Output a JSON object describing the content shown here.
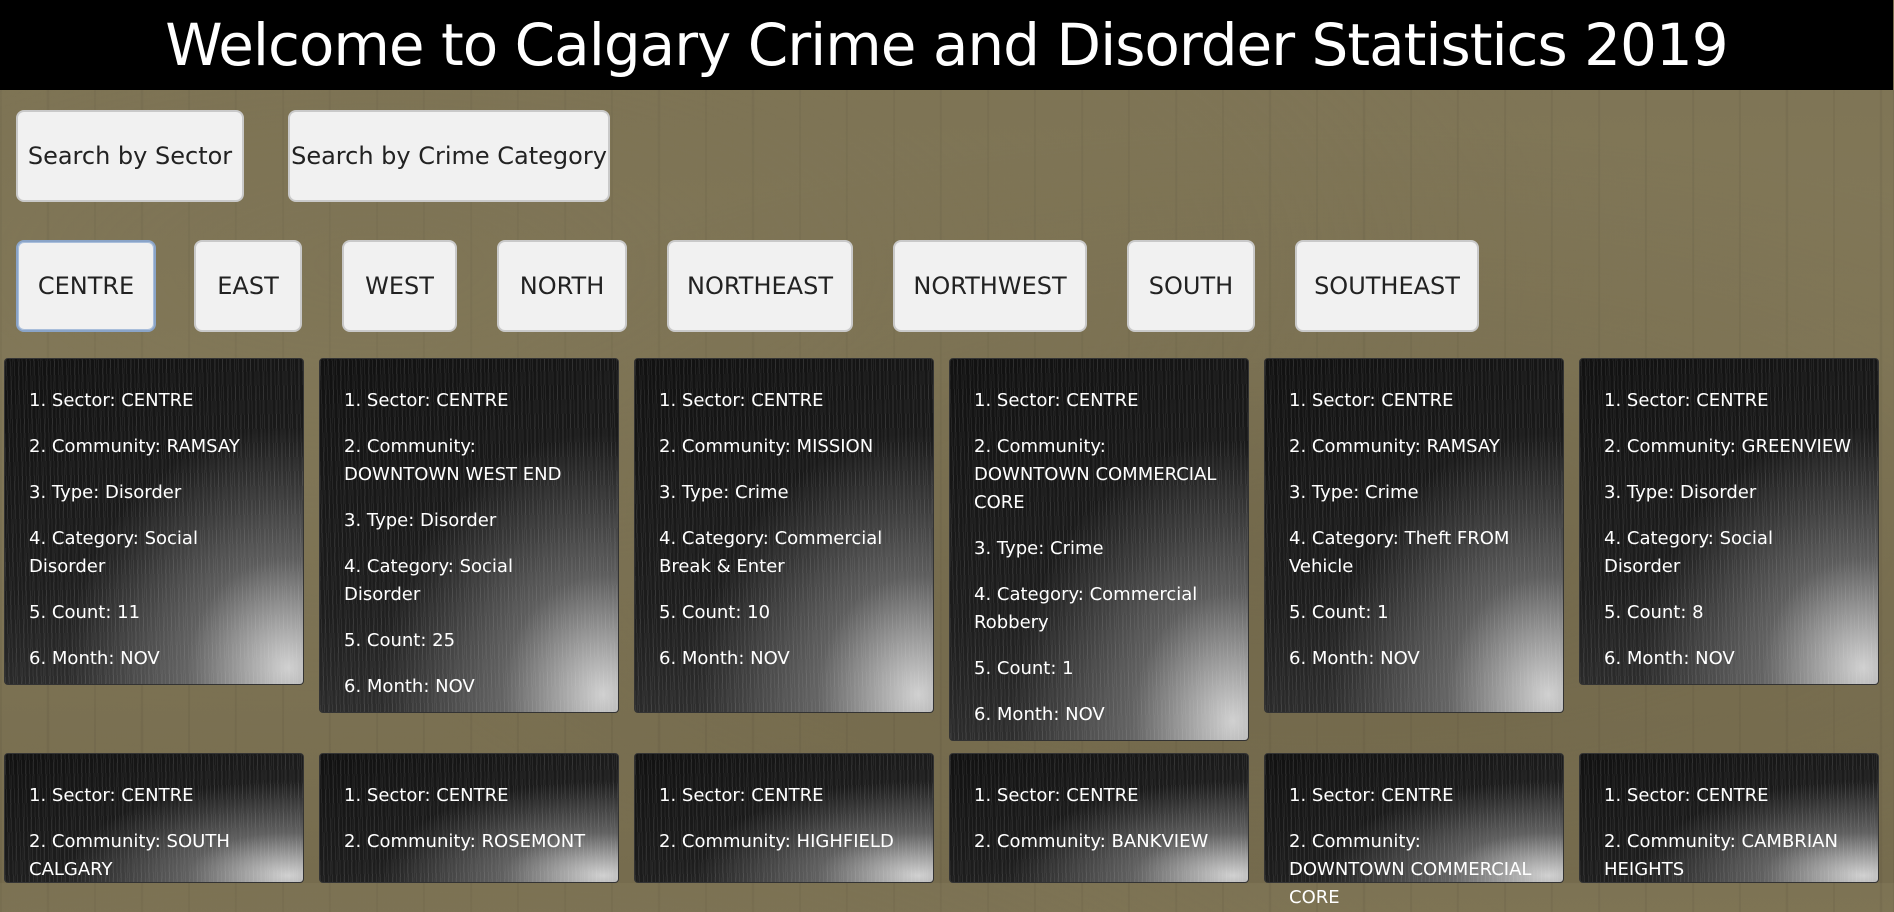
{
  "header": {
    "title": "Welcome to Calgary Crime and Disorder Statistics 2019"
  },
  "search": {
    "by_sector": "Search by Sector",
    "by_category": "Search by Crime Category"
  },
  "sectors": [
    "CENTRE",
    "EAST",
    "WEST",
    "NORTH",
    "NORTHEAST",
    "NORTHWEST",
    "SOUTH",
    "SOUTHEAST"
  ],
  "active_sector": "CENTRE",
  "records": [
    {
      "sector": "1. Sector: CENTRE",
      "community": "2. Community: RAMSAY",
      "type": "3. Type: Disorder",
      "category": "4. Category: Social Disorder",
      "count": "5. Count: 11",
      "month": "6. Month: NOV"
    },
    {
      "sector": "1. Sector: CENTRE",
      "community": "2. Community: DOWNTOWN WEST END",
      "type": "3. Type: Disorder",
      "category": "4. Category: Social Disorder",
      "count": "5. Count: 25",
      "month": "6. Month: NOV"
    },
    {
      "sector": "1. Sector: CENTRE",
      "community": "2. Community: MISSION",
      "type": "3. Type: Crime",
      "category": "4. Category: Commercial Break & Enter",
      "count": "5. Count: 10",
      "month": "6. Month: NOV"
    },
    {
      "sector": "1. Sector: CENTRE",
      "community": "2. Community: DOWNTOWN COMMERCIAL CORE",
      "type": "3. Type: Crime",
      "category": "4. Category: Commercial Robbery",
      "count": "5. Count: 1",
      "month": "6. Month: NOV"
    },
    {
      "sector": "1. Sector: CENTRE",
      "community": "2. Community: RAMSAY",
      "type": "3. Type: Crime",
      "category": "4. Category: Theft FROM Vehicle",
      "count": "5. Count: 1",
      "month": "6. Month: NOV"
    },
    {
      "sector": "1. Sector: CENTRE",
      "community": "2. Community: GREENVIEW",
      "type": "3. Type: Disorder",
      "category": "4. Category: Social Disorder",
      "count": "5. Count: 8",
      "month": "6. Month: NOV"
    },
    {
      "sector": "1. Sector: CENTRE",
      "community": "2. Community: SOUTH CALGARY"
    },
    {
      "sector": "1. Sector: CENTRE",
      "community": "2. Community: ROSEMONT"
    },
    {
      "sector": "1. Sector: CENTRE",
      "community": "2. Community: HIGHFIELD"
    },
    {
      "sector": "1. Sector: CENTRE",
      "community": "2. Community: BANKVIEW"
    },
    {
      "sector": "1. Sector: CENTRE",
      "community": "2. Community: DOWNTOWN COMMERCIAL CORE"
    },
    {
      "sector": "1. Sector: CENTRE",
      "community": "2. Community: CAMBRIAN HEIGHTS"
    }
  ]
}
